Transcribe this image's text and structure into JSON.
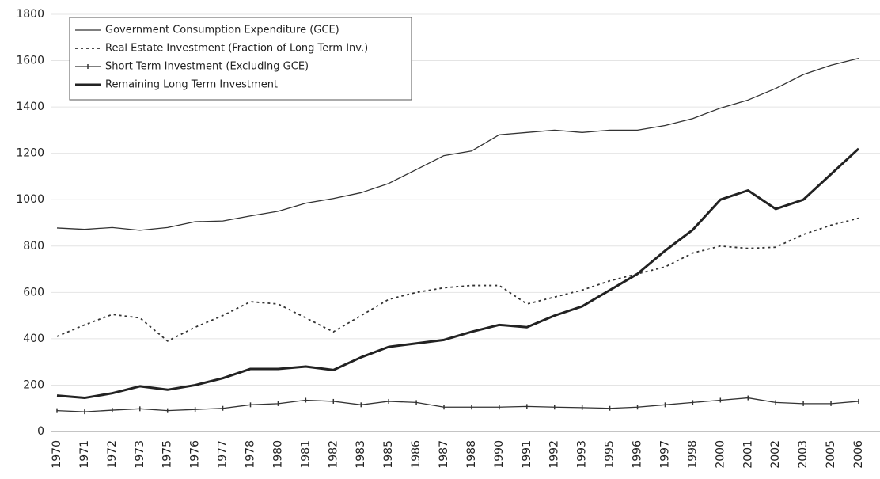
{
  "chart_data": {
    "type": "line",
    "categories": [
      "1970",
      "1971",
      "1972",
      "1973",
      "1975",
      "1976",
      "1977",
      "1978",
      "1980",
      "1981",
      "1982",
      "1983",
      "1985",
      "1986",
      "1987",
      "1988",
      "1990",
      "1991",
      "1992",
      "1993",
      "1995",
      "1996",
      "1997",
      "1998",
      "2000",
      "2001",
      "2002",
      "2003",
      "2005",
      "2006"
    ],
    "series": [
      {
        "name": "Government Consumption Expenditure (GCE)",
        "color": "#333333",
        "values": [
          878,
          872,
          880,
          868,
          880,
          905,
          908,
          930,
          950,
          985,
          1005,
          1030,
          1070,
          1130,
          1190,
          1210,
          1280,
          1290,
          1300,
          1290,
          1300,
          1300,
          1320,
          1350,
          1395,
          1430,
          1480,
          1540,
          1580,
          1610
        ]
      },
      {
        "name": "Real Estate Investment (Fraction of Long Term Inv.)",
        "color": "#333333",
        "values": [
          410,
          460,
          505,
          490,
          390,
          450,
          500,
          560,
          550,
          490,
          430,
          500,
          570,
          600,
          620,
          630,
          630,
          550,
          580,
          610,
          650,
          680,
          710,
          770,
          800,
          790,
          795,
          850,
          890,
          920
        ]
      },
      {
        "name": "Short Term Investment (Excluding GCE)",
        "color": "#333333",
        "values": [
          90,
          85,
          92,
          98,
          90,
          95,
          100,
          115,
          120,
          135,
          130,
          115,
          130,
          125,
          105,
          105,
          105,
          108,
          105,
          103,
          100,
          105,
          115,
          125,
          135,
          145,
          125,
          120,
          120,
          130
        ]
      },
      {
        "name": "Remaining Long Term Investment",
        "color": "#222222",
        "values": [
          155,
          145,
          165,
          195,
          180,
          200,
          230,
          270,
          270,
          280,
          265,
          320,
          365,
          380,
          395,
          430,
          460,
          450,
          500,
          540,
          610,
          680,
          780,
          870,
          1000,
          1040,
          960,
          1000,
          1110,
          1220
        ]
      }
    ],
    "ylim": [
      0,
      1800
    ],
    "yticks": [
      0,
      200,
      400,
      600,
      800,
      1000,
      1200,
      1400,
      1600,
      1800
    ],
    "grid": true,
    "legend": "top-left"
  }
}
